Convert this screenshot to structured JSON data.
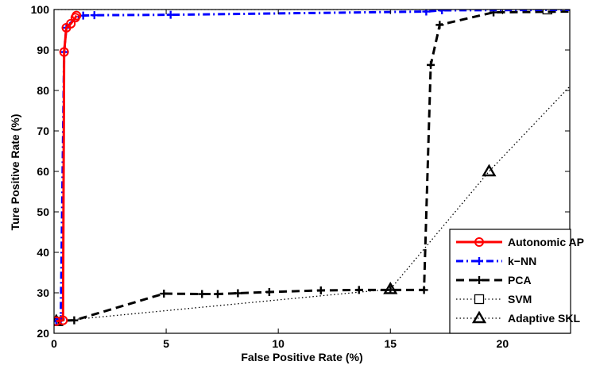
{
  "chart_data": {
    "type": "line",
    "title": "",
    "xlabel": "False Positive Rate (%)",
    "ylabel": "Ture Positive Rate (%)",
    "xlim": [
      0,
      23
    ],
    "ylim": [
      20,
      100
    ],
    "xticks": [
      0,
      5,
      10,
      15,
      20
    ],
    "yticks": [
      20,
      30,
      40,
      50,
      60,
      70,
      80,
      90,
      100
    ],
    "grid": false,
    "legend_position": "bottom-right",
    "series": [
      {
        "name": "Autonomic AP",
        "color": "#ff0000",
        "line_style": "solid",
        "marker": "circle",
        "x": [
          0.1,
          0.4,
          0.45,
          0.55,
          0.75,
          0.95,
          1.0
        ],
        "y": [
          23,
          23.2,
          89.5,
          95.5,
          96.5,
          98.0,
          98.5
        ]
      },
      {
        "name": "k−NN",
        "color": "#0000ff",
        "line_style": "dashdot",
        "marker": "plus",
        "x": [
          0.1,
          0.2,
          0.3,
          0.45,
          0.55,
          0.7,
          1.0,
          1.3,
          1.8,
          5.2,
          16.6,
          17.3,
          22.0,
          23.0
        ],
        "y": [
          23,
          23.3,
          23.5,
          89.5,
          95.5,
          96.5,
          98.0,
          98.5,
          98.6,
          98.7,
          99.5,
          99.8,
          99.9,
          99.9
        ],
        "marker_x": [
          0.1,
          0.3,
          0.45,
          0.55,
          1.3,
          1.8,
          5.2,
          16.6,
          17.3
        ],
        "marker_y": [
          23,
          23.5,
          89.5,
          95.5,
          98.5,
          98.6,
          98.7,
          99.5,
          99.8
        ]
      },
      {
        "name": "PCA",
        "color": "#000000",
        "line_style": "dashed",
        "marker": "plus",
        "x": [
          0.0,
          0.2,
          0.9,
          4.9,
          6.6,
          7.3,
          8.2,
          9.6,
          11.9,
          13.6,
          15.0,
          16.5,
          16.8,
          17.2,
          19.6,
          23.0
        ],
        "y": [
          23.0,
          23.1,
          23.2,
          29.8,
          29.7,
          29.7,
          29.9,
          30.2,
          30.6,
          30.7,
          30.7,
          30.7,
          86.3,
          96.2,
          99.3,
          99.5
        ],
        "marker_x": [
          0.2,
          0.9,
          4.9,
          6.6,
          7.3,
          8.2,
          9.6,
          11.9,
          13.6,
          15.0,
          16.5,
          16.8,
          17.2,
          19.6
        ],
        "marker_y": [
          23.1,
          23.2,
          29.8,
          29.7,
          29.7,
          29.9,
          30.2,
          30.6,
          30.7,
          30.7,
          30.7,
          86.3,
          96.2,
          99.3
        ]
      },
      {
        "name": "SVM",
        "color": "#000000",
        "line_style": "dotted",
        "marker": "square",
        "x": [
          0.0,
          22.0,
          23.0
        ],
        "y": [
          100.0,
          100.0,
          100.0
        ],
        "marker_x": [
          22.0
        ],
        "marker_y": [
          100.0
        ]
      },
      {
        "name": "Adaptive SKL",
        "color": "#000000",
        "line_style": "dotted",
        "marker": "triangle",
        "x": [
          0.1,
          15.0,
          19.4,
          23.0
        ],
        "y": [
          23.0,
          30.9,
          60.0,
          81.0
        ],
        "marker_x": [
          0.1,
          15.0,
          19.4
        ],
        "marker_y": [
          23.0,
          30.9,
          60.0
        ]
      }
    ]
  }
}
